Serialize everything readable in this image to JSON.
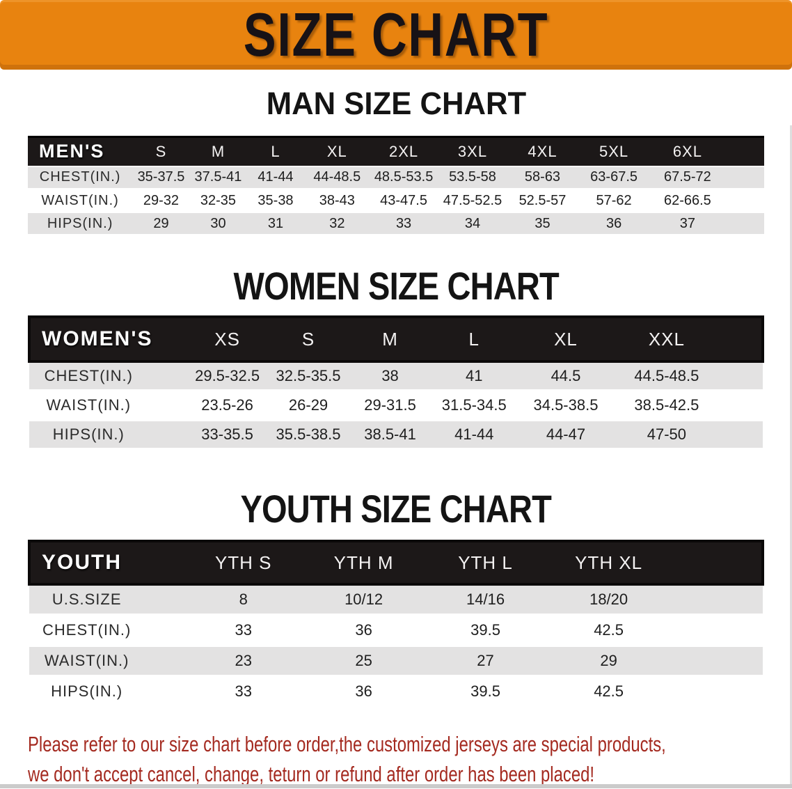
{
  "banner": {
    "title": "SIZE CHART"
  },
  "sections": [
    {
      "id": "men",
      "title": "MAN SIZE CHART",
      "header_label": "MEN'S",
      "columns": [
        "S",
        "M",
        "L",
        "XL",
        "2XL",
        "3XL",
        "4XL",
        "5XL",
        "6XL"
      ],
      "rows": [
        {
          "label": "CHEST(IN.)",
          "values": [
            "35-37.5",
            "37.5-41",
            "41-44",
            "44-48.5",
            "48.5-53.5",
            "53.5-58",
            "58-63",
            "63-67.5",
            "67.5-72"
          ]
        },
        {
          "label": "WAIST(IN.)",
          "values": [
            "29-32",
            "32-35",
            "35-38",
            "38-43",
            "43-47.5",
            "47.5-52.5",
            "52.5-57",
            "57-62",
            "62-66.5"
          ]
        },
        {
          "label": "HIPS(IN.)",
          "values": [
            "29",
            "30",
            "31",
            "32",
            "33",
            "34",
            "35",
            "36",
            "37"
          ]
        }
      ]
    },
    {
      "id": "women",
      "title": "WOMEN SIZE CHART",
      "header_label": "WOMEN'S",
      "columns": [
        "XS",
        "S",
        "M",
        "L",
        "XL",
        "XXL"
      ],
      "rows": [
        {
          "label": "CHEST(IN.)",
          "values": [
            "29.5-32.5",
            "32.5-35.5",
            "38",
            "41",
            "44.5",
            "44.5-48.5"
          ]
        },
        {
          "label": "WAIST(IN.)",
          "values": [
            "23.5-26",
            "26-29",
            "29-31.5",
            "31.5-34.5",
            "34.5-38.5",
            "38.5-42.5"
          ]
        },
        {
          "label": "HIPS(IN.)",
          "values": [
            "33-35.5",
            "35.5-38.5",
            "38.5-41",
            "41-44",
            "44-47",
            "47-50"
          ]
        }
      ]
    },
    {
      "id": "youth",
      "title": "YOUTH SIZE CHART",
      "header_label": "YOUTH",
      "columns": [
        "YTH S",
        "YTH M",
        "YTH L",
        "YTH XL"
      ],
      "rows": [
        {
          "label": "U.S.SIZE",
          "values": [
            "8",
            "10/12",
            "14/16",
            "18/20"
          ]
        },
        {
          "label": "CHEST(IN.)",
          "values": [
            "33",
            "36",
            "39.5",
            "42.5"
          ]
        },
        {
          "label": "WAIST(IN.)",
          "values": [
            "23",
            "25",
            "27",
            "29"
          ]
        },
        {
          "label": "HIPS(IN.)",
          "values": [
            "33",
            "36",
            "39.5",
            "42.5"
          ]
        }
      ]
    }
  ],
  "footnote": {
    "line1": "Please refer to our size chart before order,the customized jerseys are special products,",
    "line2": "we don't accept cancel, change, teturn or refund after order has been placed!"
  },
  "colors": {
    "banner_orange": "#E8830F",
    "header_black": "#1C1818",
    "row_stripe_gray": "#E3E2E2",
    "footnote_red": "#A42A20",
    "banner_text_black": "#171216"
  }
}
